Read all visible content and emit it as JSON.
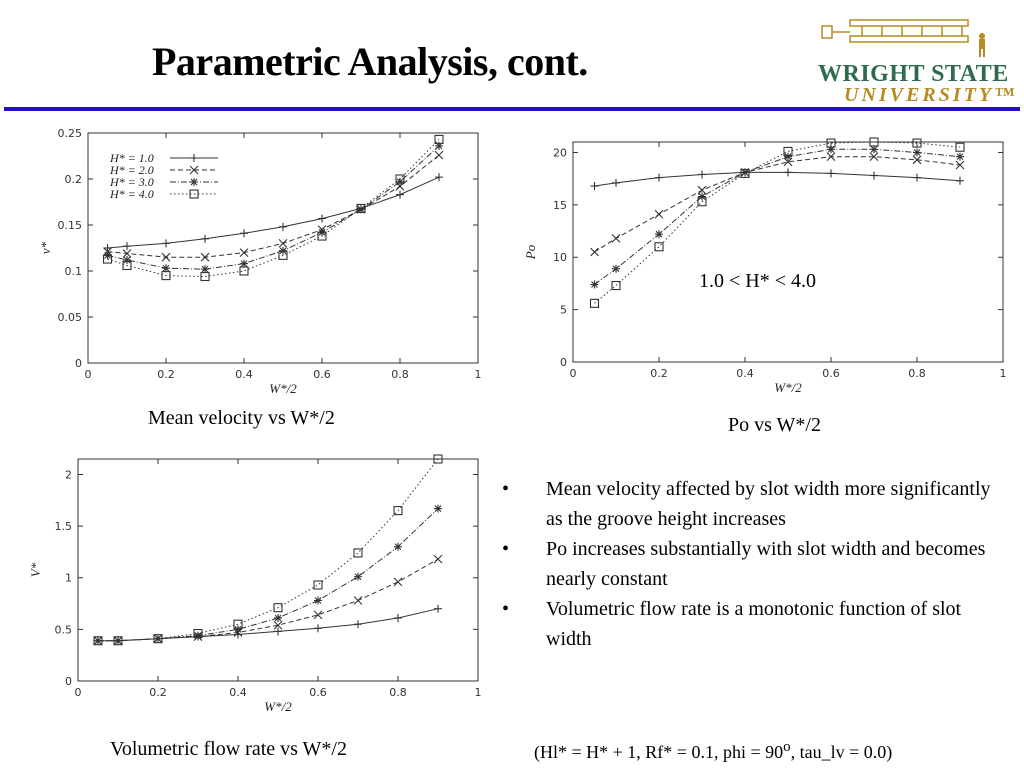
{
  "slide": {
    "title": "Parametric Analysis, cont.",
    "logo": {
      "line1": "WRIGHT STATE",
      "line2": "UNIVERSITY™"
    },
    "rule_color": "#1f10b8"
  },
  "captions": {
    "mean_velocity": "Mean velocity vs W*/2",
    "po": "Po vs W*/2",
    "flow_rate": "Volumetric flow rate vs W*/2"
  },
  "po_note": "1.0 < H* < 4.0",
  "bullets": [
    "Mean velocity affected by slot width more significantly as the groove height increases",
    "Po increases substantially with slot width and becomes nearly constant",
    "Volumetric flow rate is a monotonic function of slot width"
  ],
  "bullet_marker": "•",
  "footnote": {
    "before": "(Hl* = H* + 1, Rf* = 0.1, phi = 90",
    "sup": "o",
    "after": ", tau_lv = 0.0)"
  },
  "chart_data": [
    {
      "type": "line",
      "xlabel": "W*/2",
      "ylabel": "v*",
      "xlim": [
        0,
        1
      ],
      "ylim": [
        0,
        0.25
      ],
      "xticks": [
        "0",
        "0.2",
        "0.4",
        "0.6",
        "0.8",
        "1"
      ],
      "yticks": [
        "0",
        "0.05",
        "0.1",
        "0.15",
        "0.2",
        "0.25"
      ],
      "legend_position": "top-left",
      "grid": false,
      "x": [
        0.05,
        0.1,
        0.2,
        0.3,
        0.4,
        0.5,
        0.6,
        0.7,
        0.8,
        0.9
      ],
      "series": [
        {
          "name": "H* = 1.0",
          "marker": "+",
          "dash": "solid",
          "values": [
            0.125,
            0.127,
            0.13,
            0.135,
            0.141,
            0.148,
            0.157,
            0.168,
            0.183,
            0.202
          ]
        },
        {
          "name": "H* = 2.0",
          "marker": "x",
          "dash": "dashed",
          "values": [
            0.121,
            0.119,
            0.115,
            0.115,
            0.12,
            0.13,
            0.145,
            0.167,
            0.192,
            0.226
          ]
        },
        {
          "name": "H* = 3.0",
          "marker": "*",
          "dash": "dash-dot",
          "values": [
            0.117,
            0.112,
            0.103,
            0.102,
            0.108,
            0.122,
            0.142,
            0.167,
            0.197,
            0.236
          ]
        },
        {
          "name": "H* = 4.0",
          "marker": "square",
          "dash": "dotted",
          "values": [
            0.113,
            0.106,
            0.095,
            0.094,
            0.1,
            0.117,
            0.138,
            0.168,
            0.2,
            0.243
          ]
        }
      ]
    },
    {
      "type": "line",
      "xlabel": "W*/2",
      "ylabel": "Po",
      "xlim": [
        0,
        1
      ],
      "ylim": [
        0,
        21
      ],
      "xticks": [
        "0",
        "0.2",
        "0.4",
        "0.6",
        "0.8",
        "1"
      ],
      "yticks": [
        "0",
        "5",
        "10",
        "15",
        "20"
      ],
      "grid": false,
      "x": [
        0.05,
        0.1,
        0.2,
        0.3,
        0.4,
        0.5,
        0.6,
        0.7,
        0.8,
        0.9
      ],
      "series": [
        {
          "marker": "+",
          "dash": "solid",
          "values": [
            16.8,
            17.1,
            17.6,
            17.9,
            18.1,
            18.1,
            18.0,
            17.8,
            17.6,
            17.3
          ]
        },
        {
          "marker": "x",
          "dash": "dashed",
          "values": [
            10.5,
            11.8,
            14.1,
            16.4,
            18.1,
            19.1,
            19.6,
            19.6,
            19.3,
            18.8
          ]
        },
        {
          "marker": "*",
          "dash": "dash-dot",
          "values": [
            7.4,
            8.9,
            12.2,
            15.8,
            18.1,
            19.6,
            20.3,
            20.3,
            20.0,
            19.6
          ]
        },
        {
          "marker": "square",
          "dash": "dotted",
          "values": [
            5.6,
            7.3,
            11.0,
            15.3,
            18.0,
            20.1,
            20.9,
            21.0,
            20.9,
            20.5
          ]
        }
      ]
    },
    {
      "type": "line",
      "xlabel": "W*/2",
      "ylabel": "V*",
      "xlim": [
        0,
        1
      ],
      "ylim": [
        0,
        2.15
      ],
      "xticks": [
        "0",
        "0.2",
        "0.4",
        "0.6",
        "0.8",
        "1"
      ],
      "yticks": [
        "0",
        "0.5",
        "1",
        "1.5",
        "2"
      ],
      "grid": false,
      "x": [
        0.05,
        0.1,
        0.2,
        0.3,
        0.4,
        0.5,
        0.6,
        0.7,
        0.8,
        0.9
      ],
      "series": [
        {
          "marker": "+",
          "dash": "solid",
          "values": [
            0.39,
            0.39,
            0.41,
            0.43,
            0.45,
            0.48,
            0.51,
            0.55,
            0.61,
            0.7
          ]
        },
        {
          "marker": "x",
          "dash": "dashed",
          "values": [
            0.39,
            0.39,
            0.41,
            0.43,
            0.47,
            0.54,
            0.64,
            0.78,
            0.96,
            1.18
          ]
        },
        {
          "marker": "*",
          "dash": "dash-dot",
          "values": [
            0.39,
            0.39,
            0.41,
            0.44,
            0.5,
            0.61,
            0.78,
            1.01,
            1.3,
            1.67
          ]
        },
        {
          "marker": "square",
          "dash": "dotted",
          "values": [
            0.39,
            0.39,
            0.41,
            0.46,
            0.55,
            0.71,
            0.93,
            1.24,
            1.65,
            2.15
          ]
        }
      ]
    }
  ]
}
